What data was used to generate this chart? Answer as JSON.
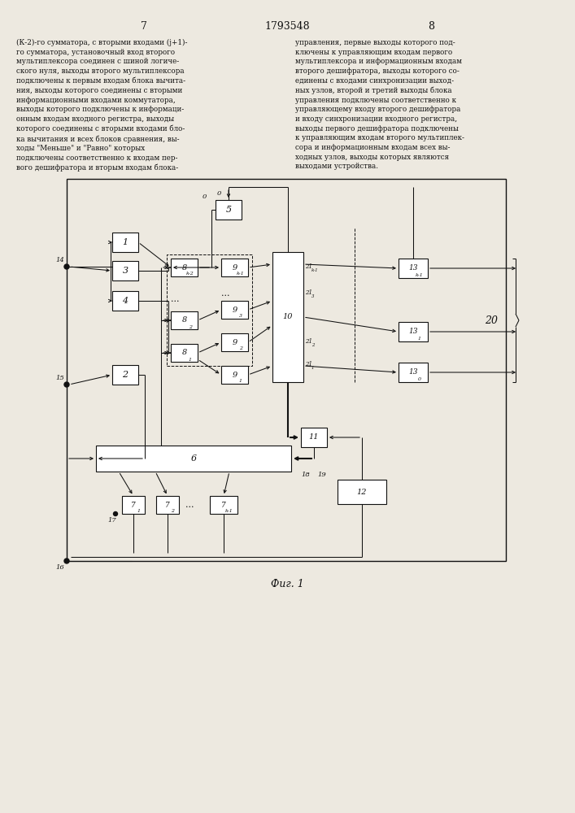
{
  "page_number_left": "7",
  "page_number_center": "1793548",
  "page_number_right": "8",
  "text_left": "(К-2)-го сумматора, с вторыми входами (j+1)-\nго сумматора, установочный вход второго\nмультиплексора соединен с шиной логиче-\nского нуля, выходы второго мультиплексора\nподключены к первым входам блока вычита-\nния, выходы которого соединены с вторыми\nинформационными входами коммутатора,\nвыходы которого подключены к информаци-\nонным входам входного регистра, выходы\nкоторого соединены с вторыми входами бло-\nка вычитания и всех блоков сравнения, вы-\nходы \"Меньше\" и \"Равно\" которых\nподключены соответственно к входам пер-\nвого дешифратора и вторым входам блока-",
  "text_right": "управления, первые выходы которого под-\nключены к управляющим входам первого\nмультиплексора и информационным входам\nвторого дешифратора, выходы которого со-\nединены с входами синхронизации выход-\nных узлов, второй и третий выходы блока\nуправления подключены соответственно к\nуправляющему входу второго дешифратора\nи входу синхронизации входного регистра,\nвыходы первого дешифратора подключены\nк управляющим входам второго мультиплек-\nсора и информационным входам всех вы-\nходных узлов, выходы которых являются\nвыходами устройства.",
  "fig_caption": "Фиг. 1",
  "bg_color": "#ede9e0",
  "box_color": "#111111",
  "line_color": "#111111",
  "text_color": "#111111"
}
